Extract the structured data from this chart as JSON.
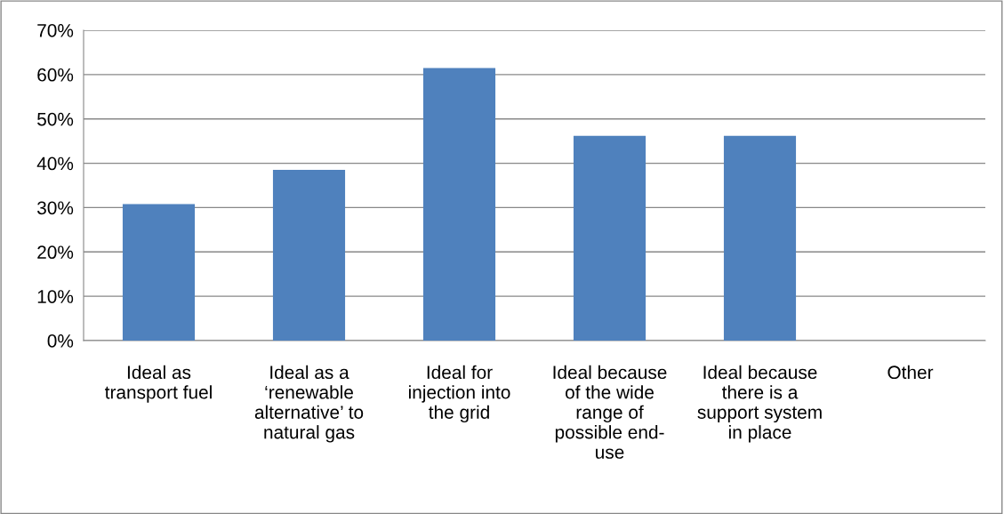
{
  "chart_data": {
    "type": "bar",
    "categories": [
      "Ideal as\ntransport fuel",
      "Ideal as a\n‘renewable\nalternative’ to\nnatural gas",
      "Ideal for\ninjection into\nthe grid",
      "Ideal because\nof the wide\nrange of\npossible end-\nuse",
      "Ideal because\nthere is a\nsupport system\nin place",
      "Other"
    ],
    "values": [
      30.8,
      38.5,
      61.5,
      46.2,
      46.2,
      0
    ],
    "color": "#4f81bd",
    "ylim": [
      0,
      70
    ],
    "yticks": [
      {
        "value": 0,
        "label": "0%"
      },
      {
        "value": 10,
        "label": "10%"
      },
      {
        "value": 20,
        "label": "20%"
      },
      {
        "value": 30,
        "label": "30%"
      },
      {
        "value": 40,
        "label": "40%"
      },
      {
        "value": 50,
        "label": "50%"
      },
      {
        "value": 60,
        "label": "60%"
      },
      {
        "value": 70,
        "label": "70%"
      }
    ],
    "grid": "y",
    "legend": false
  }
}
